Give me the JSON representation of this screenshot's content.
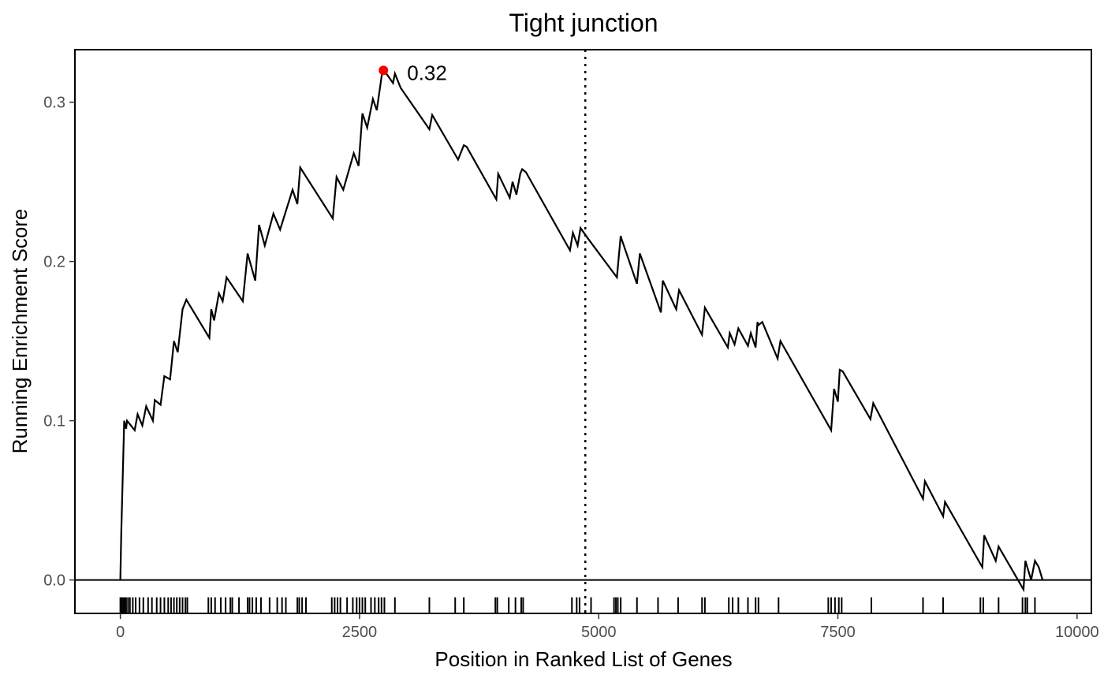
{
  "chart_data": {
    "type": "line",
    "title": "Tight junction",
    "xlabel": "Position in Ranked List of Genes",
    "ylabel": "Running Enrichment Score",
    "xlim": [
      -475,
      10150
    ],
    "ylim": [
      -0.021,
      0.333
    ],
    "x_ticks": [
      0,
      2500,
      5000,
      7500,
      10000
    ],
    "x_tick_labels": [
      "0",
      "2500",
      "5000",
      "7500",
      "10000"
    ],
    "y_ticks": [
      0.0,
      0.1,
      0.2,
      0.3
    ],
    "y_tick_labels": [
      "0.0",
      "0.1",
      "0.2",
      "0.3"
    ],
    "grid": false,
    "legend": "none",
    "colors": {
      "line": "#000000",
      "peak": "#ff0000",
      "zero_line": "#000000",
      "leading_edge": "#000000"
    },
    "series": [
      {
        "x": [
          0,
          10,
          40,
          60,
          70,
          150,
          180,
          230,
          270,
          340,
          360,
          420,
          460,
          520,
          560,
          600,
          650,
          690,
          930,
          950,
          980,
          1030,
          1070,
          1110,
          1280,
          1330,
          1410,
          1450,
          1510,
          1600,
          1670,
          1800,
          1850,
          1880,
          2220,
          2260,
          2330,
          2440,
          2490,
          2530,
          2580,
          2640,
          2680,
          2740,
          2780,
          2850,
          2870,
          2930,
          3230,
          3260,
          3530,
          3590,
          3620,
          3930,
          3950,
          4070,
          4100,
          4140,
          4180,
          4200,
          4240,
          4700,
          4730,
          4780,
          4810,
          4880,
          5190,
          5230,
          5240,
          5400,
          5430,
          5650,
          5670,
          5810,
          5840,
          6080,
          6110,
          6350,
          6370,
          6420,
          6460,
          6560,
          6590,
          6640,
          6660,
          6670,
          6710,
          6870,
          6900,
          7430,
          7460,
          7500,
          7520,
          7550,
          7840,
          7870,
          8390,
          8410,
          8600,
          8620,
          9010,
          9030,
          9150,
          9180,
          9440,
          9460,
          9520,
          9560,
          9600,
          9640
        ],
        "y": [
          0.0,
          0.03,
          0.1,
          0.095,
          0.1,
          0.094,
          0.104,
          0.097,
          0.109,
          0.1,
          0.113,
          0.11,
          0.128,
          0.126,
          0.15,
          0.143,
          0.17,
          0.176,
          0.152,
          0.17,
          0.163,
          0.18,
          0.175,
          0.19,
          0.175,
          0.205,
          0.188,
          0.223,
          0.21,
          0.23,
          0.22,
          0.245,
          0.236,
          0.259,
          0.227,
          0.253,
          0.245,
          0.268,
          0.26,
          0.293,
          0.284,
          0.302,
          0.295,
          0.32,
          0.318,
          0.312,
          0.318,
          0.309,
          0.283,
          0.292,
          0.264,
          0.273,
          0.272,
          0.239,
          0.255,
          0.24,
          0.25,
          0.242,
          0.255,
          0.258,
          0.256,
          0.207,
          0.218,
          0.21,
          0.221,
          0.215,
          0.19,
          0.216,
          0.214,
          0.186,
          0.205,
          0.168,
          0.188,
          0.17,
          0.182,
          0.154,
          0.171,
          0.146,
          0.155,
          0.148,
          0.158,
          0.147,
          0.155,
          0.146,
          0.162,
          0.16,
          0.162,
          0.139,
          0.15,
          0.094,
          0.12,
          0.112,
          0.132,
          0.131,
          0.101,
          0.111,
          0.051,
          0.062,
          0.04,
          0.049,
          0.008,
          0.028,
          0.012,
          0.021,
          -0.006,
          0.012,
          0.0,
          0.012,
          0.008,
          0.0
        ]
      }
    ],
    "peak": {
      "x": 2750,
      "y": 0.32,
      "label": "0.32"
    },
    "max_position_line_x": 4860,
    "hits": [
      0,
      15,
      30,
      45,
      60,
      80,
      100,
      130,
      160,
      200,
      240,
      290,
      330,
      380,
      420,
      460,
      500,
      530,
      560,
      590,
      620,
      650,
      680,
      700,
      920,
      950,
      990,
      1050,
      1100,
      1150,
      1170,
      1240,
      1330,
      1350,
      1380,
      1420,
      1470,
      1560,
      1640,
      1690,
      1730,
      1850,
      1870,
      1900,
      1940,
      2210,
      2240,
      2270,
      2300,
      2370,
      2430,
      2470,
      2500,
      2530,
      2560,
      2620,
      2660,
      2700,
      2730,
      2760,
      2870,
      3230,
      3500,
      3590,
      3920,
      3940,
      4060,
      4130,
      4190,
      4210,
      4720,
      4770,
      4800,
      4920,
      5160,
      5180,
      5200,
      5230,
      5400,
      5620,
      5830,
      6080,
      6110,
      6360,
      6400,
      6460,
      6560,
      6640,
      6670,
      6880,
      7400,
      7430,
      7470,
      7510,
      7540,
      7850,
      8390,
      8600,
      8990,
      9020,
      9180,
      9430,
      9460,
      9480,
      9560
    ]
  }
}
